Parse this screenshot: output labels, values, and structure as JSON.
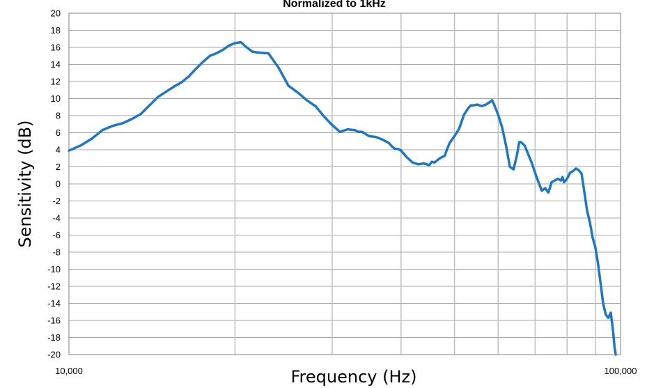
{
  "chart_data": {
    "type": "line",
    "title": "Normalized to 1kHz",
    "xlabel": "Frequency (Hz)",
    "ylabel": "Sensitivity (dB)",
    "xscale": "log",
    "xlim": [
      10000,
      100000
    ],
    "ylim": [
      -20,
      20
    ],
    "yticks": [
      -20,
      -18,
      -16,
      -14,
      -12,
      -10,
      -8,
      -6,
      -4,
      -2,
      0,
      2,
      4,
      6,
      8,
      10,
      12,
      14,
      16,
      18,
      20
    ],
    "xtick_labels": [
      {
        "value": 10000,
        "label": "10,000"
      },
      {
        "value": 100000,
        "label": "100,000"
      }
    ],
    "grid": true,
    "line_color": "#1F77C4",
    "series": [
      {
        "x": [
          10000,
          10500,
          11000,
          11500,
          12000,
          12500,
          13000,
          13500,
          14000,
          14500,
          15000,
          15500,
          16000,
          16500,
          17000,
          17500,
          18000,
          18500,
          19000,
          19500,
          20000,
          20500,
          21000,
          21500,
          22000,
          23000,
          24000,
          25000,
          26000,
          27000,
          28000,
          29000,
          30000,
          31000,
          32000,
          33000,
          33500,
          34000,
          35000,
          36000,
          37000,
          38000,
          38500,
          39000,
          39500,
          40000,
          41000,
          42000,
          43000,
          44000,
          45000,
          45500,
          46000,
          47000,
          48000,
          48500,
          49000,
          49500,
          50000,
          51000,
          51500,
          52000,
          53000,
          53500,
          54000,
          55000,
          56000,
          56500,
          57000,
          58000,
          58500,
          59000,
          60000,
          61000,
          62000,
          63000,
          64000,
          65000,
          65500,
          66000,
          67000,
          68000,
          69000,
          70000,
          71000,
          72000,
          73000,
          74000,
          75000,
          76000,
          77000,
          78000,
          78500,
          79000,
          80000,
          81000,
          82000,
          83000,
          84000
        ],
        "y": [
          3.9,
          4.5,
          5.3,
          6.3,
          6.8,
          7.1,
          7.6,
          8.2,
          9.2,
          10.2,
          10.8,
          11.4,
          11.9,
          12.6,
          13.5,
          14.3,
          15.0,
          15.3,
          15.7,
          16.2,
          16.5,
          16.6,
          16.0,
          15.5,
          15.4,
          15.3,
          13.6,
          11.5,
          10.7,
          9.8,
          9.1,
          7.9,
          6.9,
          6.1,
          6.4,
          6.3,
          6.1,
          6.1,
          5.6,
          5.5,
          5.2,
          4.8,
          4.4,
          4.1,
          4.1,
          3.9,
          3.1,
          2.5,
          2.3,
          2.4,
          2.2,
          2.6,
          2.5,
          3.0,
          3.3,
          4.1,
          4.8,
          5.2,
          5.6,
          6.5,
          7.3,
          8.1,
          8.9,
          9.2,
          9.2,
          9.3,
          9.1,
          9.2,
          9.3,
          9.6,
          9.8,
          9.3,
          8.1,
          6.6,
          4.5,
          2.0,
          1.7,
          3.6,
          4.9,
          4.9,
          4.5,
          3.5,
          2.5,
          1.3,
          0.2,
          -0.8,
          -0.5,
          -1.0,
          0.2,
          0.4,
          0.6,
          0.4,
          0.8,
          0.2,
          0.6,
          1.3,
          1.5,
          1.8,
          1.6
        ]
      },
      {
        "x": [
          85000,
          86000,
          87000,
          88000,
          89000,
          90000,
          91000,
          92000,
          93000,
          94000,
          95000,
          96000,
          97000,
          97500,
          98000
        ],
        "y": [
          1.2,
          -1.0,
          -3.2,
          -4.5,
          -6.3,
          -7.4,
          -9.3,
          -11.6,
          -14.0,
          -15.3,
          -15.7,
          -15.1,
          -17.4,
          -19.1,
          -20.0
        ]
      }
    ]
  }
}
